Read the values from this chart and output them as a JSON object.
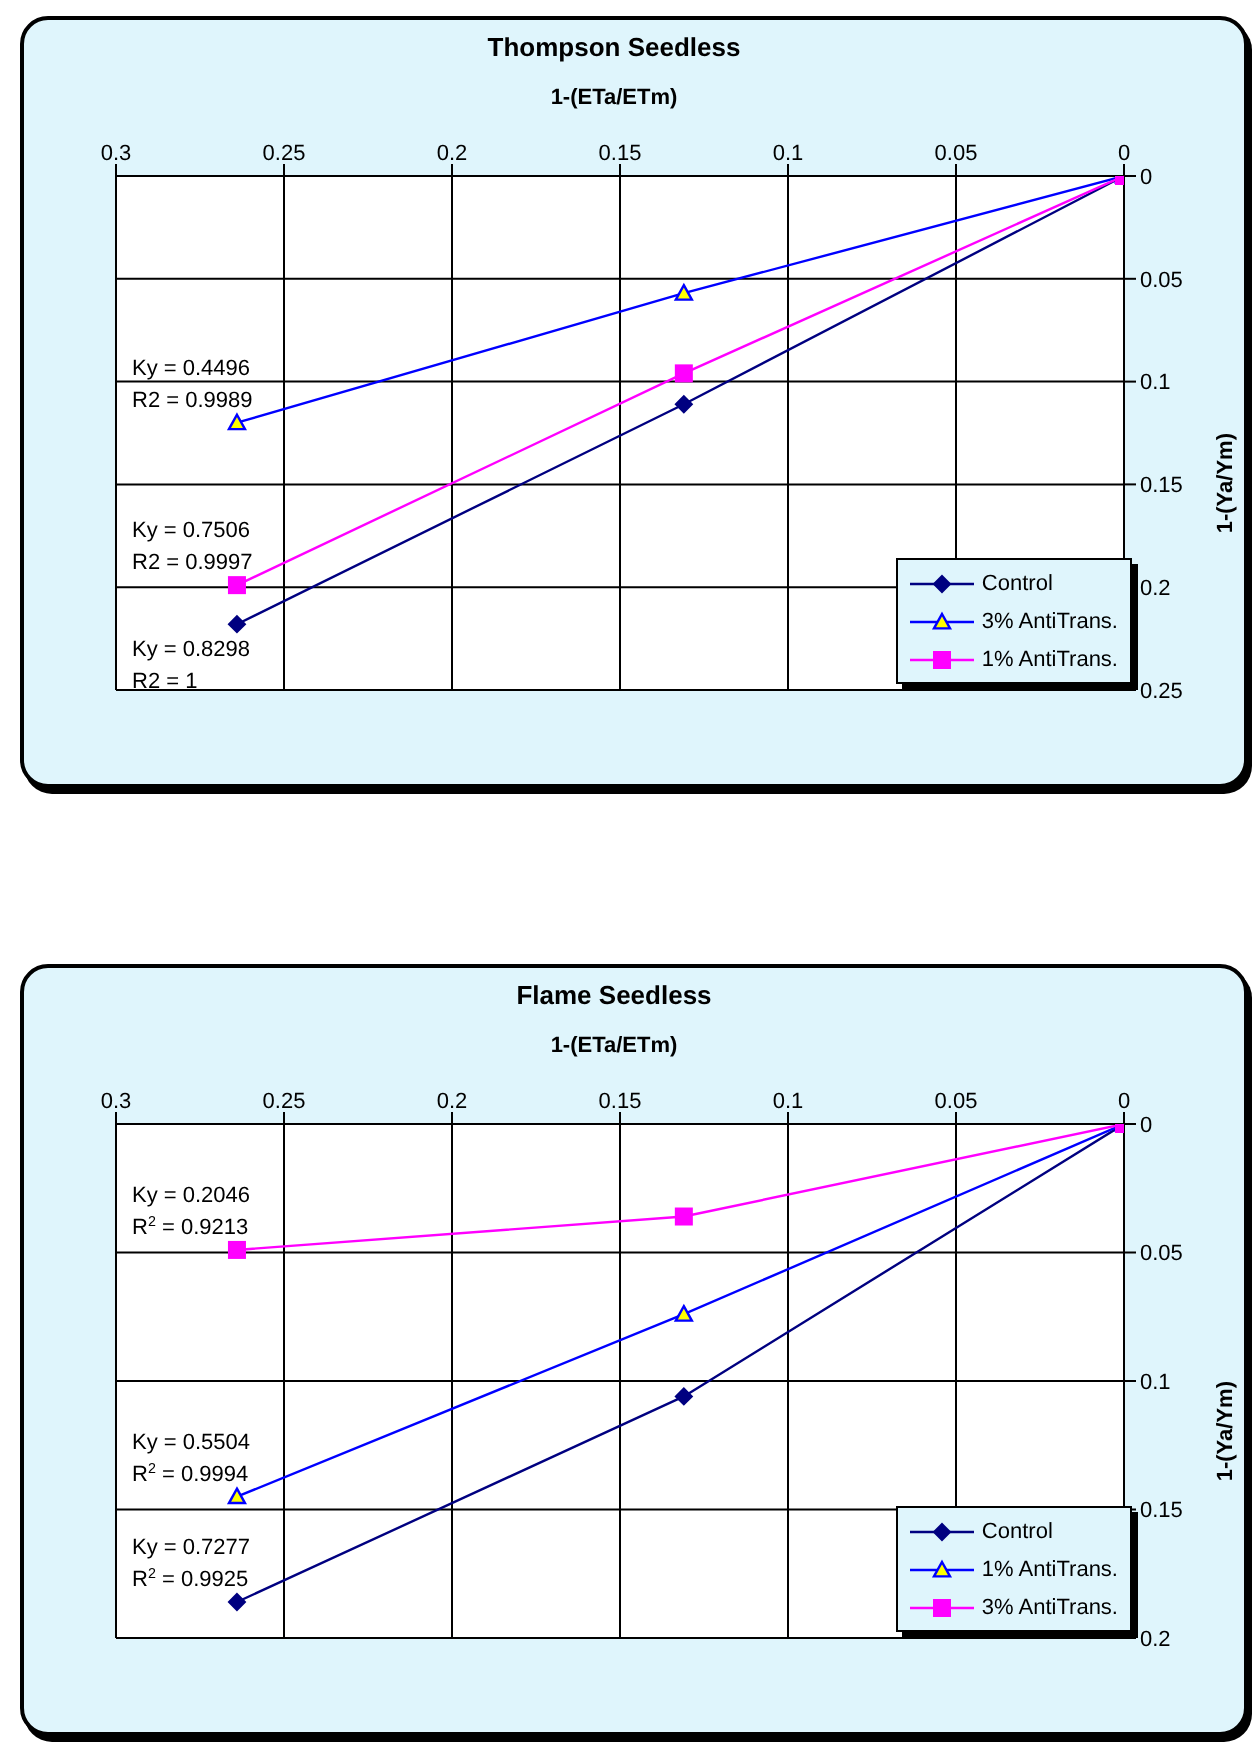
{
  "chart_data": [
    {
      "type": "line",
      "title": "Thompson Seedless",
      "xlabel": "1-(ETa/ETm)",
      "ylabel": "1-(Ya/Ym)",
      "xlim": [
        0.3,
        0
      ],
      "xticks": [
        0.3,
        0.25,
        0.2,
        0.15,
        0.1,
        0.05,
        0
      ],
      "ylim": [
        0.25,
        0
      ],
      "yticks": [
        0,
        0.05,
        0.1,
        0.15,
        0.2,
        0.25
      ],
      "grid": true,
      "legend": "bottom right",
      "series": [
        {
          "name": "Control",
          "color": "#000080",
          "marker": "diamond",
          "x": [
            0.264,
            0.131,
            0
          ],
          "values": [
            0.218,
            0.111,
            0
          ]
        },
        {
          "name": "3% AntiTrans.",
          "color": "#0000ff",
          "marker": "triangle",
          "x": [
            0.264,
            0.131,
            0
          ],
          "values": [
            0.12,
            0.057,
            0
          ]
        },
        {
          "name": "1% AntiTrans.",
          "color": "#ff00ff",
          "marker": "square",
          "x": [
            0.264,
            0.131,
            0
          ],
          "values": [
            0.199,
            0.096,
            0
          ]
        }
      ],
      "annotations": [
        "Ky = 0.4496",
        "R2 = 0.9989",
        "Ky = 0.7506",
        "R2 = 0.9997",
        "Ky = 0.8298",
        "R2 = 1"
      ]
    },
    {
      "type": "line",
      "title": "Flame Seedless",
      "xlabel": "1-(ETa/ETm)",
      "ylabel": "1-(Ya/Ym)",
      "xlim": [
        0.3,
        0
      ],
      "xticks": [
        0.3,
        0.25,
        0.2,
        0.15,
        0.1,
        0.05,
        0
      ],
      "ylim": [
        0.2,
        0
      ],
      "yticks": [
        0,
        0.05,
        0.1,
        0.15,
        0.2
      ],
      "grid": true,
      "legend": "bottom right",
      "series": [
        {
          "name": "Control",
          "color": "#000080",
          "marker": "diamond",
          "x": [
            0.264,
            0.131,
            0
          ],
          "values": [
            0.186,
            0.106,
            0
          ]
        },
        {
          "name": "1% AntiTrans.",
          "color": "#0000ff",
          "marker": "triangle",
          "x": [
            0.264,
            0.131,
            0
          ],
          "values": [
            0.145,
            0.074,
            0
          ]
        },
        {
          "name": "3% AntiTrans.",
          "color": "#ff00ff",
          "marker": "square",
          "x": [
            0.264,
            0.131,
            0
          ],
          "values": [
            0.049,
            0.036,
            0
          ]
        }
      ],
      "annotations": [
        "Ky = 0.2046",
        "R$^{2}$ = 0.9213",
        "Ky = 0.5504",
        "R$^{2}$ = 0.9994",
        "Ky = 0.7277",
        "R$^{2}$ = 0.9925"
      ]
    }
  ]
}
